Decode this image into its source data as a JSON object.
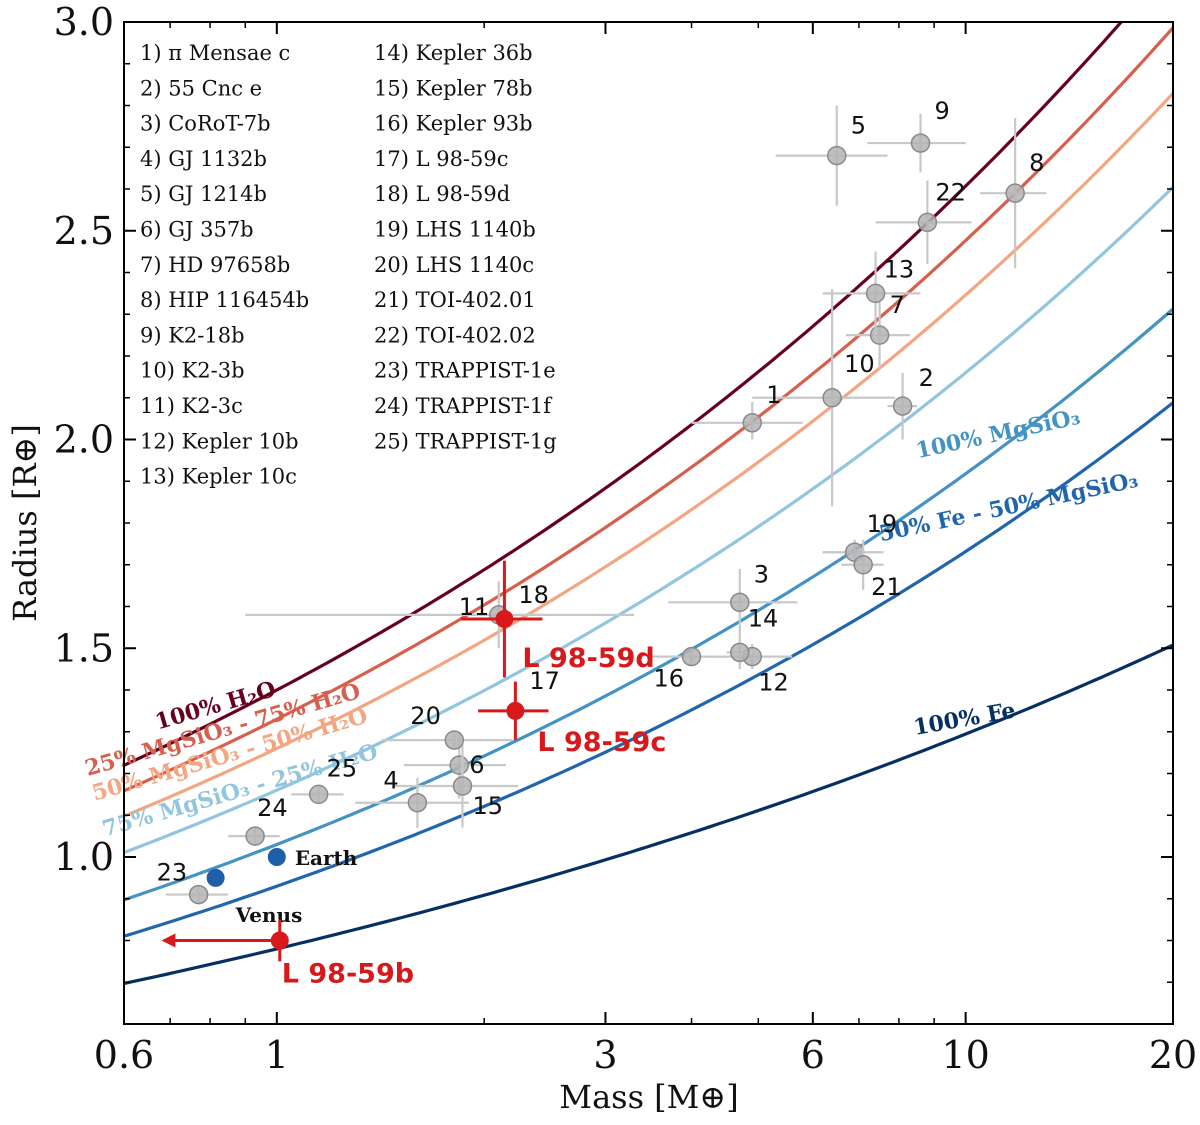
{
  "chart_data": {
    "type": "scatter",
    "xlabel": "Mass [M⊕]",
    "ylabel": "Radius [R⊕]",
    "xscale": "log",
    "xlim": [
      0.6,
      20
    ],
    "ylim": [
      0.6,
      3.0
    ],
    "xticks": [
      {
        "value": 0.6,
        "label": "0.6"
      },
      {
        "value": 1,
        "label": "1"
      },
      {
        "value": 3,
        "label": "3"
      },
      {
        "value": 6,
        "label": "6"
      },
      {
        "value": 10,
        "label": "10"
      },
      {
        "value": 20,
        "label": "20"
      }
    ],
    "yticks": [
      {
        "value": 1.0,
        "label": "1.0"
      },
      {
        "value": 1.5,
        "label": "1.5"
      },
      {
        "value": 2.0,
        "label": "2.0"
      },
      {
        "value": 2.5,
        "label": "2.5"
      },
      {
        "value": 3.0,
        "label": "3.0"
      }
    ],
    "planet_list": [
      "1) π Mensae c",
      "2) 55 Cnc e",
      "3) CoRoT-7b",
      "4) GJ 1132b",
      "5) GJ 1214b",
      "6) GJ 357b",
      "7) HD 97658b",
      "8) HIP 116454b",
      "9) K2-18b",
      "10) K2-3b",
      "11) K2-3c",
      "12) Kepler 10b",
      "13) Kepler 10c",
      "14) Kepler 36b",
      "15) Kepler 78b",
      "16) Kepler 93b",
      "17) L 98-59c",
      "18) L 98-59d",
      "19) LHS 1140b",
      "20) LHS 1140c",
      "21) TOI-402.01",
      "22) TOI-402.02",
      "23) TRAPPIST-1e",
      "24) TRAPPIST-1f",
      "25) TRAPPIST-1g"
    ],
    "composition_curves": [
      {
        "label": "100% H₂O",
        "color": "#67001f",
        "r_at_1": 1.4,
        "exp": 0.27
      },
      {
        "label": "25% MgSiO₃ - 75% H₂O",
        "color": "#d6604d",
        "r_at_1": 1.33,
        "exp": 0.27
      },
      {
        "label": "50% MgSiO₃ - 50% H₂O",
        "color": "#f4a582",
        "r_at_1": 1.26,
        "exp": 0.27
      },
      {
        "label": "75% MgSiO₃ - 25% H₂O",
        "color": "#92c5de",
        "r_at_1": 1.16,
        "exp": 0.27
      },
      {
        "label": "100% MgSiO₃",
        "color": "#4393c3",
        "r_at_1": 1.03,
        "exp": 0.27
      },
      {
        "label": "50% Fe - 50% MgSiO₃",
        "color": "#2166ac",
        "r_at_1": 0.93,
        "exp": 0.27
      },
      {
        "label": "100% Fe",
        "color": "#053061",
        "r_at_1": 0.78,
        "exp": 0.22
      }
    ],
    "known_planets": [
      {
        "id": "1",
        "mass": 4.9,
        "radius": 2.04,
        "xerr": [
          0.9,
          0.9
        ],
        "yerr": [
          0.04,
          0.05
        ]
      },
      {
        "id": "2",
        "mass": 8.1,
        "radius": 2.08,
        "xerr": [
          0.4,
          0.4
        ],
        "yerr": [
          0.08,
          0.08
        ]
      },
      {
        "id": "3",
        "mass": 4.7,
        "radius": 1.61,
        "xerr": [
          1.0,
          1.0
        ],
        "yerr": [
          0.08,
          0.08
        ]
      },
      {
        "id": "4",
        "mass": 1.6,
        "radius": 1.13,
        "xerr": [
          0.3,
          0.3
        ],
        "yerr": [
          0.06,
          0.06
        ]
      },
      {
        "id": "5",
        "mass": 6.5,
        "radius": 2.68,
        "xerr": [
          1.2,
          1.2
        ],
        "yerr": [
          0.12,
          0.12
        ]
      },
      {
        "id": "6",
        "mass": 1.84,
        "radius": 1.22,
        "xerr": [
          0.31,
          0.31
        ],
        "yerr": [
          0.08,
          0.08
        ]
      },
      {
        "id": "7",
        "mass": 7.5,
        "radius": 2.25,
        "xerr": [
          0.8,
          0.8
        ],
        "yerr": [
          0.08,
          0.08
        ]
      },
      {
        "id": "8",
        "mass": 11.8,
        "radius": 2.59,
        "xerr": [
          1.3,
          1.3
        ],
        "yerr": [
          0.18,
          0.18
        ]
      },
      {
        "id": "9",
        "mass": 8.6,
        "radius": 2.71,
        "xerr": [
          1.4,
          1.4
        ],
        "yerr": [
          0.07,
          0.07
        ]
      },
      {
        "id": "10",
        "mass": 6.4,
        "radius": 2.1,
        "xerr": [
          1.5,
          1.5
        ],
        "yerr": [
          0.26,
          0.26
        ]
      },
      {
        "id": "11",
        "mass": 2.1,
        "radius": 1.58,
        "xerr": [
          1.2,
          1.2
        ],
        "yerr": [
          0.08,
          0.08
        ]
      },
      {
        "id": "12",
        "mass": 4.9,
        "radius": 1.48,
        "xerr": [
          0.7,
          0.7
        ],
        "yerr": [
          0.03,
          0.03
        ]
      },
      {
        "id": "13",
        "mass": 7.4,
        "radius": 2.35,
        "xerr": [
          1.2,
          1.2
        ],
        "yerr": [
          0.1,
          0.1
        ]
      },
      {
        "id": "14",
        "mass": 4.7,
        "radius": 1.49,
        "xerr": [
          0.2,
          0.2
        ],
        "yerr": [
          0.04,
          0.04
        ]
      },
      {
        "id": "15",
        "mass": 1.86,
        "radius": 1.17,
        "xerr": [
          0.38,
          0.38
        ],
        "yerr": [
          0.1,
          0.1
        ]
      },
      {
        "id": "16",
        "mass": 4.0,
        "radius": 1.48,
        "xerr": [
          0.5,
          0.5
        ],
        "yerr": [
          0.02,
          0.02
        ]
      },
      {
        "id": "19",
        "mass": 6.9,
        "radius": 1.73,
        "xerr": [
          0.7,
          0.7
        ],
        "yerr": [
          0.03,
          0.03
        ]
      },
      {
        "id": "20",
        "mass": 1.81,
        "radius": 1.28,
        "xerr": [
          0.39,
          0.39
        ],
        "yerr": [
          0.02,
          0.02
        ]
      },
      {
        "id": "21",
        "mass": 7.1,
        "radius": 1.7,
        "xerr": [
          0.5,
          0.5
        ],
        "yerr": [
          0.06,
          0.06
        ]
      },
      {
        "id": "22",
        "mass": 8.8,
        "radius": 2.52,
        "xerr": [
          1.4,
          1.4
        ],
        "yerr": [
          0.1,
          0.1
        ]
      },
      {
        "id": "23",
        "mass": 0.77,
        "radius": 0.91,
        "xerr": [
          0.08,
          0.08
        ],
        "yerr": [
          0.02,
          0.02
        ]
      },
      {
        "id": "24",
        "mass": 0.93,
        "radius": 1.05,
        "xerr": [
          0.08,
          0.08
        ],
        "yerr": [
          0.02,
          0.02
        ]
      },
      {
        "id": "25",
        "mass": 1.15,
        "radius": 1.15,
        "xerr": [
          0.1,
          0.1
        ],
        "yerr": [
          0.02,
          0.02
        ]
      }
    ],
    "l9859_planets": [
      {
        "id": "18",
        "label": "L 98-59d",
        "mass": 2.14,
        "radius": 1.57,
        "xerr": [
          0.29,
          0.29
        ],
        "yerr": [
          0.14,
          0.14
        ],
        "color": "#d7191c"
      },
      {
        "id": "17",
        "label": "L 98-59c",
        "mass": 2.22,
        "radius": 1.35,
        "xerr": [
          0.26,
          0.26
        ],
        "yerr": [
          0.07,
          0.07
        ],
        "color": "#d7191c"
      },
      {
        "label": "L 98-59b",
        "mass": 1.01,
        "radius": 0.8,
        "upper_limit_to": 0.68,
        "yerr": [
          0.05,
          0.05
        ],
        "color": "#d7191c"
      }
    ],
    "solar_system": [
      {
        "label": "Earth",
        "mass": 1.0,
        "radius": 1.0,
        "color": "#1f5fa8"
      },
      {
        "label": "Venus",
        "mass": 0.815,
        "radius": 0.95,
        "color": "#1f5fa8"
      }
    ]
  }
}
